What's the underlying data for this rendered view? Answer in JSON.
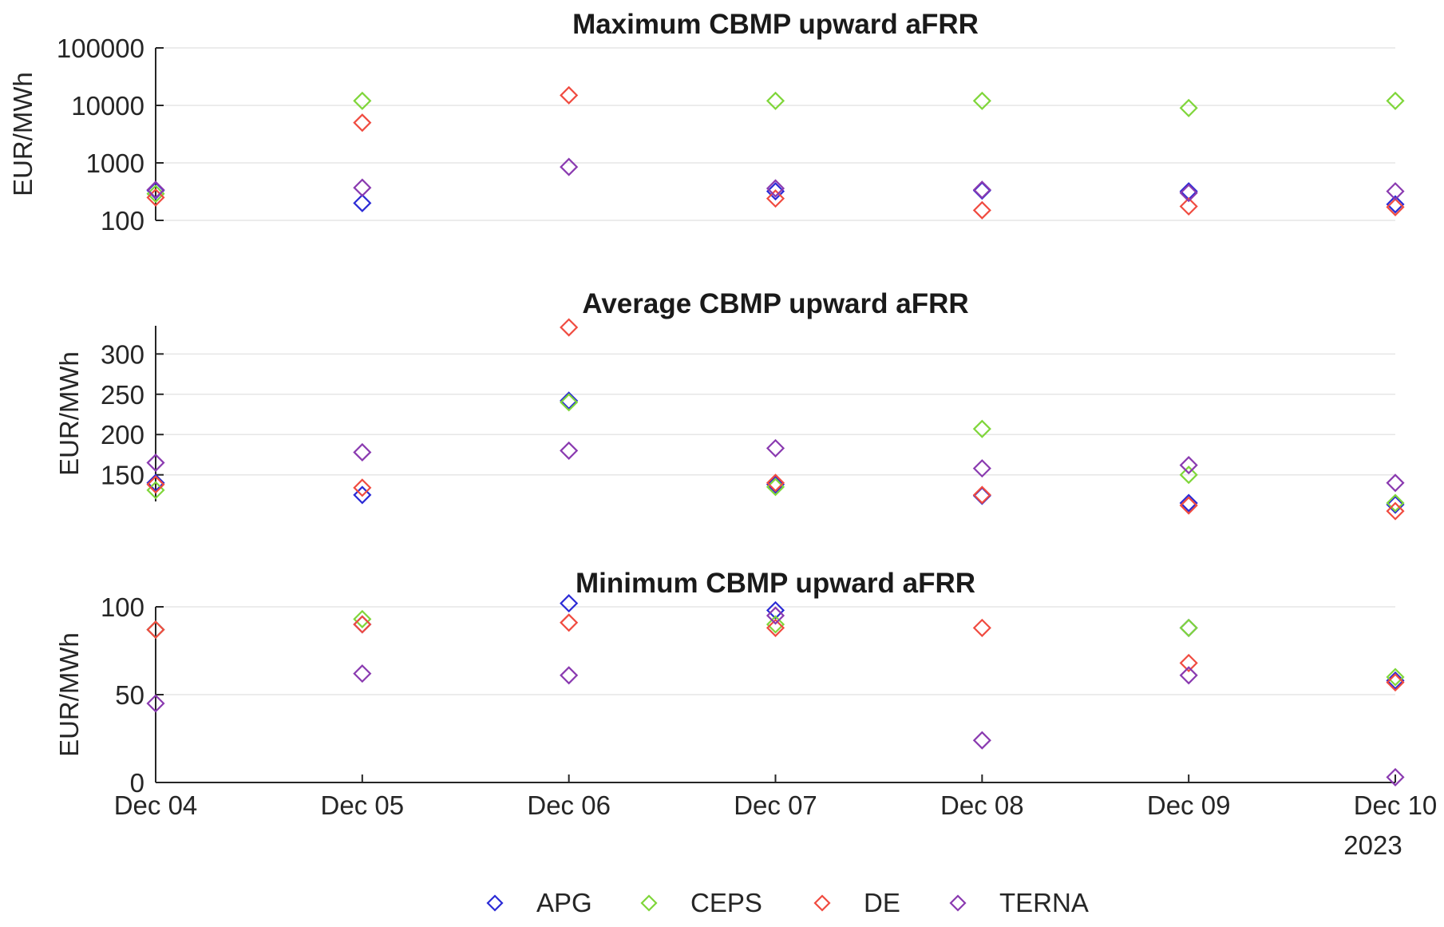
{
  "chart_data": [
    {
      "type": "scatter",
      "title": "Maximum CBMP upward aFRR",
      "ylabel": "EUR/MWh",
      "xlabel": "",
      "yscale": "log",
      "ylim": [
        100,
        100000
      ],
      "yticks": [
        100,
        1000,
        10000,
        100000
      ],
      "ytick_labels": [
        "100",
        "1000",
        "10000",
        "100000"
      ],
      "x": [
        "2023-12-04",
        "2023-12-05",
        "2023-12-06",
        "2023-12-07",
        "2023-12-08",
        "2023-12-09",
        "2023-12-10"
      ],
      "grid": true,
      "series": [
        {
          "name": "APG",
          "values": [
            330,
            200,
            null,
            320,
            330,
            320,
            190
          ]
        },
        {
          "name": "CEPS",
          "values": [
            290,
            12000,
            null,
            12000,
            12000,
            9000,
            12000
          ]
        },
        {
          "name": "DE",
          "values": [
            250,
            5000,
            15000,
            240,
            150,
            175,
            170
          ]
        },
        {
          "name": "TERNA",
          "values": [
            340,
            370,
            850,
            360,
            340,
            300,
            320
          ]
        }
      ]
    },
    {
      "type": "scatter",
      "title": "Average CBMP upward aFRR",
      "ylabel": "EUR/MWh",
      "xlabel": "",
      "ylim": [
        117,
        335
      ],
      "yticks": [
        150,
        200,
        250,
        300
      ],
      "ytick_labels": [
        "150",
        "200",
        "250",
        "300"
      ],
      "x": [
        "2023-12-04",
        "2023-12-05",
        "2023-12-06",
        "2023-12-07",
        "2023-12-08",
        "2023-12-09",
        "2023-12-10"
      ],
      "grid": true,
      "series": [
        {
          "name": "APG",
          "values": [
            140,
            125,
            242,
            138,
            124,
            115,
            113
          ]
        },
        {
          "name": "CEPS",
          "values": [
            131,
            null,
            240,
            135,
            207,
            150,
            115
          ]
        },
        {
          "name": "DE",
          "values": [
            138,
            134,
            333,
            140,
            125,
            112,
            105
          ]
        },
        {
          "name": "TERNA",
          "values": [
            165,
            178,
            180,
            183,
            158,
            162,
            140
          ]
        }
      ]
    },
    {
      "type": "scatter",
      "title": "Minimum CBMP upward aFRR",
      "ylabel": "EUR/MWh",
      "xlabel": "",
      "ylim": [
        0,
        100
      ],
      "yticks": [
        0,
        50,
        100
      ],
      "ytick_labels": [
        "0",
        "50",
        "100"
      ],
      "x": [
        "2023-12-04",
        "2023-12-05",
        "2023-12-06",
        "2023-12-07",
        "2023-12-08",
        "2023-12-09",
        "2023-12-10"
      ],
      "xtick_labels": [
        "Dec 04",
        "Dec 05",
        "Dec 06",
        "Dec 07",
        "Dec 08",
        "Dec 09",
        "Dec 10"
      ],
      "xaxis_year": "2023",
      "grid": true,
      "series": [
        {
          "name": "APG",
          "values": [
            87,
            90,
            102,
            98,
            null,
            88,
            58
          ]
        },
        {
          "name": "CEPS",
          "values": [
            87,
            93,
            null,
            90,
            null,
            88,
            60
          ]
        },
        {
          "name": "DE",
          "values": [
            87,
            90,
            91,
            88,
            88,
            68,
            57
          ]
        },
        {
          "name": "TERNA",
          "values": [
            45,
            62,
            61,
            95,
            24,
            61,
            3
          ]
        }
      ]
    }
  ],
  "legend": {
    "placement": "bottom",
    "entries": [
      {
        "label": "APG",
        "color": "#2b2bd6"
      },
      {
        "label": "CEPS",
        "color": "#7fd63a"
      },
      {
        "label": "DE",
        "color": "#f04b40"
      },
      {
        "label": "TERNA",
        "color": "#8a3ab0"
      }
    ]
  },
  "colors": {
    "axis": "#262626",
    "grid": "#e6e6e6"
  }
}
